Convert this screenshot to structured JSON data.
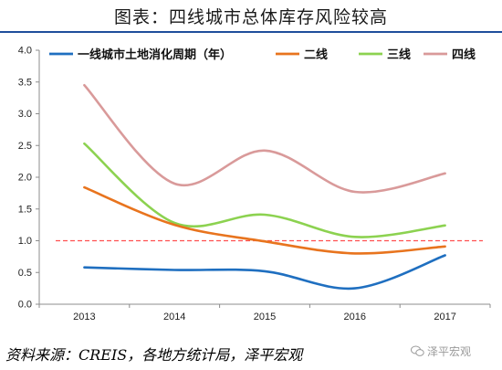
{
  "header": {
    "title": "图表：四线城市总体库存风险较高"
  },
  "footer": {
    "source": "资料来源：CREIS，各地方统计局，泽平宏观",
    "watermark": "泽平宏观"
  },
  "chart_data": {
    "type": "line",
    "title": "",
    "xlabel": "",
    "ylabel": "",
    "categories": [
      "2013",
      "2014",
      "2015",
      "2016",
      "2017"
    ],
    "ylim": [
      0,
      4.0
    ],
    "yticks": [
      "0.0",
      "0.5",
      "1.0",
      "1.5",
      "2.0",
      "2.5",
      "3.0",
      "3.5",
      "4.0"
    ],
    "legend_position": "top",
    "reference_line": {
      "value": 1.0,
      "color": "#ff5050",
      "style": "dashed"
    },
    "series": [
      {
        "name": "一线城市土地消化周期（年）",
        "color": "#1f6fc0",
        "values": [
          0.58,
          0.54,
          0.52,
          0.25,
          0.77
        ]
      },
      {
        "name": "二线",
        "color": "#e8741e",
        "values": [
          1.84,
          1.25,
          0.99,
          0.8,
          0.91
        ]
      },
      {
        "name": "三线",
        "color": "#8cd250",
        "values": [
          2.53,
          1.28,
          1.41,
          1.06,
          1.24
        ]
      },
      {
        "name": "四线",
        "color": "#d99a9a",
        "values": [
          3.45,
          1.9,
          2.42,
          1.77,
          2.06
        ]
      }
    ]
  }
}
